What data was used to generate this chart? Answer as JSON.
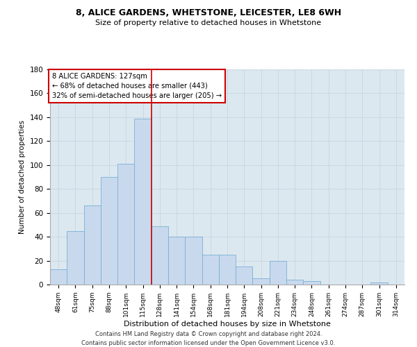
{
  "title1": "8, ALICE GARDENS, WHETSTONE, LEICESTER, LE8 6WH",
  "title2": "Size of property relative to detached houses in Whetstone",
  "xlabel": "Distribution of detached houses by size in Whetstone",
  "ylabel": "Number of detached properties",
  "categories": [
    "48sqm",
    "61sqm",
    "75sqm",
    "88sqm",
    "101sqm",
    "115sqm",
    "128sqm",
    "141sqm",
    "154sqm",
    "168sqm",
    "181sqm",
    "194sqm",
    "208sqm",
    "221sqm",
    "234sqm",
    "248sqm",
    "261sqm",
    "274sqm",
    "287sqm",
    "301sqm",
    "314sqm"
  ],
  "values": [
    13,
    45,
    66,
    90,
    101,
    139,
    49,
    40,
    40,
    25,
    25,
    15,
    5,
    20,
    4,
    3,
    0,
    0,
    0,
    2,
    0
  ],
  "bar_color": "#c8d9ed",
  "bar_edge_color": "#7aafd4",
  "vline_bar_index": 6,
  "vline_color": "#cc0000",
  "annotation_line1": "8 ALICE GARDENS: 127sqm",
  "annotation_line2": "← 68% of detached houses are smaller (443)",
  "annotation_line3": "32% of semi-detached houses are larger (205) →",
  "annotation_box_color": "#cc0000",
  "ylim": [
    0,
    180
  ],
  "yticks": [
    0,
    20,
    40,
    60,
    80,
    100,
    120,
    140,
    160,
    180
  ],
  "grid_color": "#c8d4e0",
  "bg_color": "#dce8f0",
  "footer1": "Contains HM Land Registry data © Crown copyright and database right 2024.",
  "footer2": "Contains public sector information licensed under the Open Government Licence v3.0."
}
